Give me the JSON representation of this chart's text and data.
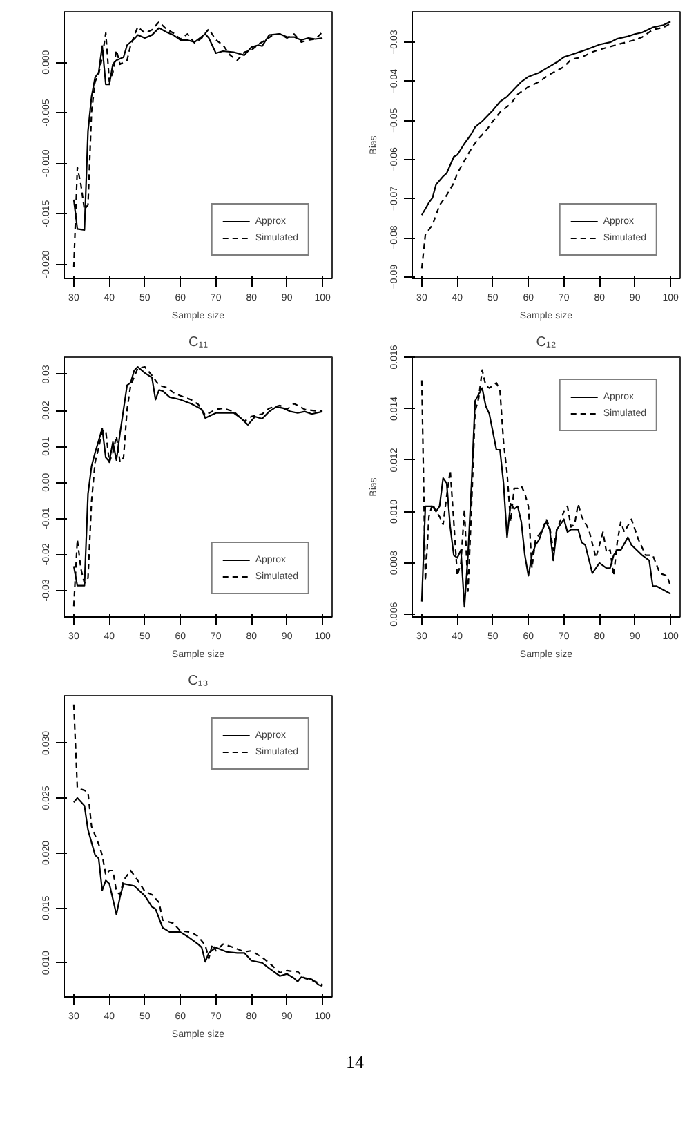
{
  "chart_data": [
    {
      "type": "line",
      "xlabel": "Sample size",
      "xlim": [
        27.3,
        102.7
      ],
      "xticks": [
        30,
        40,
        50,
        60,
        70,
        80,
        90,
        100
      ],
      "ylim": [
        -0.0214,
        0.005
      ],
      "yticks": [
        {
          "value": -0.02,
          "label": "-0.020"
        },
        {
          "value": -0.015,
          "label": "-0.015"
        },
        {
          "value": -0.01,
          "label": "-0.010"
        },
        {
          "value": -0.005,
          "label": "-0.005"
        },
        {
          "value": 0,
          "label": "0.000"
        }
      ],
      "legend": "bottom right",
      "grid": false,
      "series": [
        {
          "name": "Approx",
          "color": "#000000",
          "line_style": "solid",
          "x": [
            30,
            31,
            33,
            34,
            35,
            36,
            37,
            38,
            39,
            40,
            41,
            42,
            44,
            45,
            47,
            48,
            50,
            52,
            54,
            56,
            58,
            60,
            62,
            64,
            67,
            68,
            70,
            72,
            75,
            78,
            80,
            82,
            83,
            85,
            88,
            90,
            92,
            94,
            96,
            98,
            100
          ],
          "values": [
            -0.0136,
            -0.0165,
            -0.0166,
            -0.0068,
            -0.0034,
            -0.0015,
            -0.001,
            0.0016,
            -0.0022,
            -0.0022,
            -0.0002,
            0.0002,
            0.0005,
            0.0017,
            0.0023,
            0.0027,
            0.0024,
            0.0027,
            0.0034,
            0.003,
            0.0027,
            0.0022,
            0.0022,
            0.002,
            0.0028,
            0.0024,
            0.0009,
            0.0011,
            0.001,
            0.0007,
            0.0015,
            0.0017,
            0.0016,
            0.0027,
            0.0028,
            0.0025,
            0.0025,
            0.0022,
            0.0024,
            0.0023,
            0.0024
          ]
        },
        {
          "name": "Simulated",
          "color": "#000000",
          "line_style": "dashed",
          "x": [
            30,
            31,
            32,
            33,
            34,
            35,
            36,
            37,
            38,
            39,
            40,
            41,
            42,
            43,
            44,
            45,
            46,
            48,
            50,
            52,
            54,
            56,
            58,
            60,
            62,
            64,
            66,
            68,
            70,
            72,
            74,
            76,
            78,
            80,
            82,
            84,
            86,
            88,
            90,
            92,
            94,
            96,
            98,
            100
          ],
          "values": [
            -0.0203,
            -0.0104,
            -0.0121,
            -0.0146,
            -0.0141,
            -0.0049,
            -0.0019,
            -0.0012,
            0.0005,
            0.0029,
            -0.0019,
            -0.001,
            0.0012,
            -0.0002,
            0,
            0.0002,
            0.0017,
            0.0035,
            0.0029,
            0.0032,
            0.004,
            0.0033,
            0.0029,
            0.0023,
            0.0028,
            0.0019,
            0.0024,
            0.0033,
            0.0022,
            0.0017,
            0.0007,
            0.0002,
            0.001,
            0.0012,
            0.0018,
            0.0022,
            0.0027,
            0.0028,
            0.0024,
            0.0028,
            0.002,
            0.0022,
            0.0023,
            0.003
          ]
        }
      ]
    },
    {
      "type": "line",
      "xlabel": "Sample size",
      "ylabel": "Bias",
      "xlim": [
        27.3,
        102.7
      ],
      "xticks": [
        30,
        40,
        50,
        60,
        70,
        80,
        90,
        100
      ],
      "ylim": [
        -0.0904,
        -0.0222
      ],
      "yticks": [
        -0.09,
        -0.08,
        -0.07,
        -0.06,
        -0.05,
        -0.04,
        -0.03
      ],
      "legend": "bottom right",
      "grid": false,
      "series": [
        {
          "name": "Approx",
          "color": "#000000",
          "line_style": "solid",
          "x": [
            30,
            32,
            33,
            34,
            36,
            37,
            39,
            40,
            42,
            44,
            45,
            47,
            50,
            52,
            54,
            56,
            58,
            60,
            63,
            65,
            68,
            70,
            72,
            75,
            78,
            80,
            83,
            85,
            88,
            90,
            92,
            95,
            98,
            100
          ],
          "values": [
            -0.0742,
            -0.071,
            -0.0698,
            -0.0664,
            -0.0643,
            -0.0635,
            -0.0593,
            -0.0588,
            -0.0559,
            -0.0534,
            -0.0517,
            -0.0502,
            -0.0474,
            -0.0452,
            -0.0439,
            -0.042,
            -0.0401,
            -0.0388,
            -0.0378,
            -0.0367,
            -0.0351,
            -0.0338,
            -0.0332,
            -0.0323,
            -0.0313,
            -0.0306,
            -0.03,
            -0.0291,
            -0.0285,
            -0.0279,
            -0.0275,
            -0.0262,
            -0.0256,
            -0.0247
          ]
        },
        {
          "name": "Simulated",
          "color": "#000000",
          "line_style": "dashed",
          "x": [
            30,
            31,
            33,
            35,
            37,
            39,
            40,
            42,
            44,
            46,
            48,
            50,
            52,
            55,
            57,
            60,
            63,
            66,
            70,
            72,
            75,
            78,
            80,
            85,
            90,
            92,
            95,
            98,
            100
          ],
          "values": [
            -0.0878,
            -0.0792,
            -0.0767,
            -0.0717,
            -0.0691,
            -0.066,
            -0.0635,
            -0.0603,
            -0.0571,
            -0.0546,
            -0.0527,
            -0.0502,
            -0.0479,
            -0.0458,
            -0.0433,
            -0.0414,
            -0.0401,
            -0.0382,
            -0.0363,
            -0.0344,
            -0.0338,
            -0.0325,
            -0.0319,
            -0.0306,
            -0.0294,
            -0.0287,
            -0.0268,
            -0.0262,
            -0.0252
          ]
        }
      ]
    },
    {
      "type": "line",
      "title": "C₁₁",
      "xlabel": "Sample size",
      "xlim": [
        27.3,
        102.7
      ],
      "xticks": [
        30,
        40,
        50,
        60,
        70,
        80,
        90,
        100
      ],
      "ylim": [
        -0.0374,
        0.0348
      ],
      "yticks": [
        {
          "value": -0.03,
          "label": "-0.03"
        },
        {
          "value": -0.02,
          "label": "-0.02"
        },
        {
          "value": -0.01,
          "label": "-0.01"
        },
        {
          "value": 0,
          "label": "0.00"
        },
        {
          "value": 0.01,
          "label": "0.01"
        },
        {
          "value": 0.02,
          "label": "0.02"
        },
        {
          "value": 0.03,
          "label": "0.03"
        }
      ],
      "legend": "bottom right",
      "grid": false,
      "series": [
        {
          "name": "Approx",
          "color": "#000000",
          "line_style": "solid",
          "x": [
            30,
            31,
            33,
            34,
            35,
            36,
            37,
            38,
            39,
            40,
            41,
            42,
            43,
            45,
            46,
            47,
            48,
            50,
            52,
            53,
            54,
            55,
            57,
            60,
            63,
            66,
            67,
            70,
            72,
            75,
            77,
            79,
            81,
            83,
            85,
            87,
            89,
            91,
            93,
            95,
            97,
            100
          ],
          "values": [
            -0.0233,
            -0.0287,
            -0.0287,
            -0.0032,
            0.0045,
            0.0083,
            0.0116,
            0.015,
            0.0069,
            0.0058,
            0.0112,
            0.0062,
            0.0136,
            0.027,
            0.0277,
            0.0311,
            0.0321,
            0.0304,
            0.0291,
            0.023,
            0.0257,
            0.0254,
            0.0237,
            0.023,
            0.0219,
            0.0203,
            0.0179,
            0.0193,
            0.0193,
            0.0193,
            0.0179,
            0.016,
            0.0183,
            0.0177,
            0.0197,
            0.021,
            0.0206,
            0.0197,
            0.0193,
            0.0197,
            0.019,
            0.0197
          ]
        },
        {
          "name": "Simulated",
          "color": "#000000",
          "line_style": "dashed",
          "x": [
            30,
            31,
            32,
            33,
            34,
            35,
            36,
            37,
            38,
            39,
            40,
            41,
            42,
            43,
            44,
            45,
            46,
            48,
            50,
            52,
            54,
            56,
            58,
            60,
            63,
            65,
            67,
            70,
            72,
            75,
            78,
            80,
            83,
            85,
            88,
            90,
            92,
            95,
            98,
            100
          ],
          "values": [
            -0.0344,
            -0.0159,
            -0.024,
            -0.028,
            -0.0266,
            -0.0052,
            0.0056,
            0.0096,
            0.0143,
            0.0143,
            0.0056,
            0.0083,
            0.0129,
            0.0056,
            0.0069,
            0.0203,
            0.027,
            0.0317,
            0.0321,
            0.0297,
            0.027,
            0.0264,
            0.025,
            0.0241,
            0.023,
            0.0217,
            0.0187,
            0.0203,
            0.0206,
            0.0197,
            0.017,
            0.0183,
            0.019,
            0.0206,
            0.0214,
            0.0203,
            0.0219,
            0.0203,
            0.0199,
            0.0199
          ]
        }
      ]
    },
    {
      "type": "line",
      "title": "C₁₂",
      "xlabel": "Sample size",
      "ylabel": "Bias",
      "xlim": [
        27.3,
        102.7
      ],
      "xticks": [
        30,
        40,
        50,
        60,
        70,
        80,
        90,
        100
      ],
      "ylim": [
        0.0059,
        0.016
      ],
      "yticks": [
        {
          "value": 0.006,
          "label": "0.006"
        },
        {
          "value": 0.008,
          "label": "0.008"
        },
        {
          "value": 0.01,
          "label": "0.010"
        },
        {
          "value": 0.012,
          "label": "0.012"
        },
        {
          "value": 0.014,
          "label": "0.014"
        },
        {
          "value": 0.016,
          "label": "0.016"
        }
      ],
      "legend": "top right",
      "grid": false,
      "series": [
        {
          "name": "Approx",
          "color": "#000000",
          "line_style": "solid",
          "x": [
            30,
            31,
            33,
            34,
            35,
            36,
            37,
            38,
            39,
            40,
            41,
            42,
            43,
            44,
            45,
            47,
            48,
            49,
            51,
            52,
            53,
            54,
            55,
            56,
            57,
            58,
            59,
            60,
            61,
            62,
            63,
            64,
            65,
            66,
            67,
            68,
            70,
            71,
            72,
            74,
            75,
            76,
            78,
            80,
            82,
            83,
            84,
            85,
            86,
            88,
            89,
            92,
            94,
            95,
            96,
            100
          ],
          "values": [
            0.0065,
            0.0102,
            0.0102,
            0.01,
            0.0102,
            0.0113,
            0.0111,
            0.0094,
            0.0083,
            0.0082,
            0.0085,
            0.0063,
            0.0083,
            0.0111,
            0.0143,
            0.0148,
            0.0141,
            0.0138,
            0.0124,
            0.0124,
            0.0111,
            0.009,
            0.0103,
            0.0101,
            0.0102,
            0.0096,
            0.0083,
            0.0075,
            0.0083,
            0.0087,
            0.0089,
            0.0093,
            0.0096,
            0.0093,
            0.0081,
            0.0093,
            0.0097,
            0.0092,
            0.0093,
            0.0093,
            0.0088,
            0.0087,
            0.0076,
            0.008,
            0.0078,
            0.0078,
            0.0083,
            0.0085,
            0.0085,
            0.009,
            0.0087,
            0.0083,
            0.0081,
            0.0071,
            0.0071,
            0.0068
          ]
        },
        {
          "name": "Simulated",
          "color": "#000000",
          "line_style": "dashed",
          "x": [
            30,
            31,
            32,
            33,
            34,
            35,
            36,
            37,
            38,
            39,
            40,
            41,
            42,
            43,
            44,
            45,
            46,
            47,
            48,
            49,
            51,
            52,
            53,
            54,
            55,
            56,
            57,
            58,
            59,
            60,
            61,
            62,
            64,
            65,
            66,
            67,
            68,
            70,
            71,
            72,
            73,
            74,
            75,
            77,
            79,
            80,
            81,
            82,
            83,
            84,
            85,
            86,
            87,
            89,
            91,
            93,
            95,
            97,
            99,
            100
          ],
          "values": [
            0.0151,
            0.0073,
            0.0098,
            0.0103,
            0.01,
            0.0098,
            0.0095,
            0.0106,
            0.0116,
            0.0096,
            0.0075,
            0.008,
            0.0101,
            0.0069,
            0.0102,
            0.0139,
            0.0144,
            0.0155,
            0.0149,
            0.0148,
            0.015,
            0.0147,
            0.0127,
            0.0115,
            0.0096,
            0.0109,
            0.0109,
            0.011,
            0.0107,
            0.0102,
            0.0078,
            0.0089,
            0.0093,
            0.0097,
            0.0094,
            0.0085,
            0.0093,
            0.01,
            0.0102,
            0.0094,
            0.0095,
            0.0103,
            0.0098,
            0.0093,
            0.0082,
            0.0087,
            0.0092,
            0.0084,
            0.0085,
            0.0075,
            0.0088,
            0.0096,
            0.0092,
            0.0097,
            0.0089,
            0.0083,
            0.0083,
            0.0076,
            0.0075,
            0.0071
          ]
        }
      ]
    },
    {
      "type": "line",
      "title": "C₁₃",
      "xlabel": "Sample size",
      "xlim": [
        27.3,
        102.7
      ],
      "xticks": [
        30,
        40,
        50,
        60,
        70,
        80,
        90,
        100
      ],
      "ylim": [
        0.0069,
        0.0343
      ],
      "yticks": [
        {
          "value": 0.01,
          "label": "0.010"
        },
        {
          "value": 0.015,
          "label": "0.015"
        },
        {
          "value": 0.02,
          "label": "0.020"
        },
        {
          "value": 0.025,
          "label": "0.025"
        },
        {
          "value": 0.03,
          "label": "0.030"
        }
      ],
      "legend": "top right",
      "grid": false,
      "annotations": [
        "14"
      ],
      "series": [
        {
          "name": "Approx",
          "color": "#000000",
          "line_style": "solid",
          "x": [
            30,
            31,
            33,
            34,
            36,
            37,
            38,
            39,
            40,
            42,
            43,
            44,
            47,
            50,
            52,
            53,
            55,
            57,
            60,
            62,
            65,
            66,
            67,
            68,
            70,
            73,
            76,
            78,
            80,
            83,
            85,
            88,
            90,
            92,
            93,
            94,
            97,
            99,
            100
          ],
          "values": [
            0.0246,
            0.025,
            0.0243,
            0.0221,
            0.0198,
            0.0195,
            0.0166,
            0.0175,
            0.0172,
            0.0144,
            0.016,
            0.0172,
            0.017,
            0.0161,
            0.0151,
            0.0149,
            0.0132,
            0.0128,
            0.0128,
            0.0124,
            0.0117,
            0.0114,
            0.0101,
            0.0109,
            0.0114,
            0.011,
            0.0109,
            0.0109,
            0.0102,
            0.01,
            0.0095,
            0.0088,
            0.009,
            0.0086,
            0.0083,
            0.0087,
            0.0085,
            0.008,
            0.0079
          ]
        },
        {
          "name": "Simulated",
          "color": "#000000",
          "line_style": "dashed",
          "x": [
            30,
            31,
            33,
            34,
            35,
            37,
            38,
            39,
            40,
            41,
            42,
            43,
            44,
            46,
            48,
            50,
            52,
            54,
            55,
            58,
            60,
            63,
            65,
            67,
            68,
            69,
            70,
            72,
            75,
            78,
            80,
            83,
            85,
            88,
            90,
            92,
            93,
            95,
            98,
            100
          ],
          "values": [
            0.0335,
            0.0259,
            0.0257,
            0.0255,
            0.0224,
            0.0208,
            0.0198,
            0.018,
            0.0184,
            0.0184,
            0.0165,
            0.0162,
            0.0175,
            0.0184,
            0.0175,
            0.0165,
            0.0162,
            0.0155,
            0.0139,
            0.0136,
            0.0129,
            0.0128,
            0.0124,
            0.0116,
            0.0104,
            0.0117,
            0.0111,
            0.0117,
            0.0114,
            0.011,
            0.0111,
            0.0105,
            0.01,
            0.0091,
            0.0093,
            0.0092,
            0.0092,
            0.0086,
            0.0083,
            0.008
          ]
        }
      ]
    }
  ]
}
